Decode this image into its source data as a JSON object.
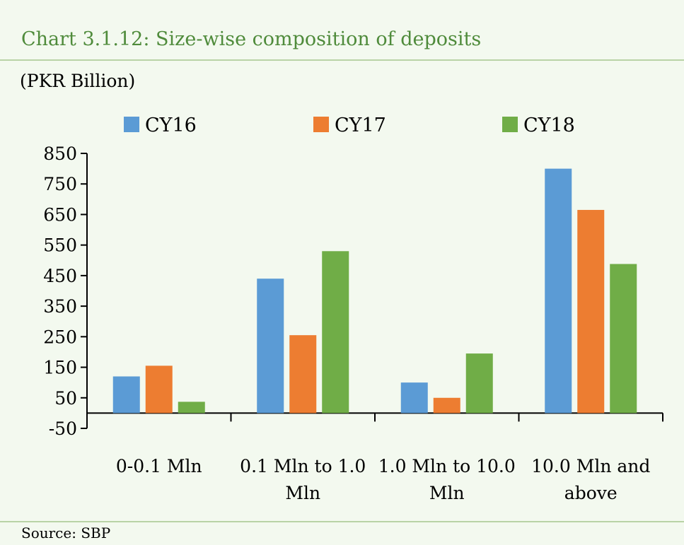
{
  "chart_data": {
    "type": "bar",
    "title": "Chart 3.1.12: Size-wise composition of deposits",
    "ylabel": "(PKR Billion)",
    "xlabel": "",
    "source": "Source:  SBP",
    "categories": [
      [
        "0-0.1 Mln"
      ],
      [
        "0.1 Mln to 1.0",
        "Mln"
      ],
      [
        "1.0 Mln to 10.0",
        "Mln"
      ],
      [
        "10.0 Mln and",
        "above"
      ]
    ],
    "series": [
      {
        "name": "CY16",
        "color": "#5b9bd5",
        "values": [
          120,
          440,
          100,
          800
        ]
      },
      {
        "name": "CY17",
        "color": "#ed7d31",
        "values": [
          155,
          255,
          50,
          665
        ]
      },
      {
        "name": "CY18",
        "color": "#70ad47",
        "values": [
          37,
          530,
          195,
          488
        ]
      }
    ],
    "ylim": [
      -50,
      850
    ],
    "yticks": [
      850,
      750,
      650,
      550,
      450,
      350,
      250,
      150,
      50,
      -50
    ],
    "grid": false,
    "legend": "top"
  }
}
